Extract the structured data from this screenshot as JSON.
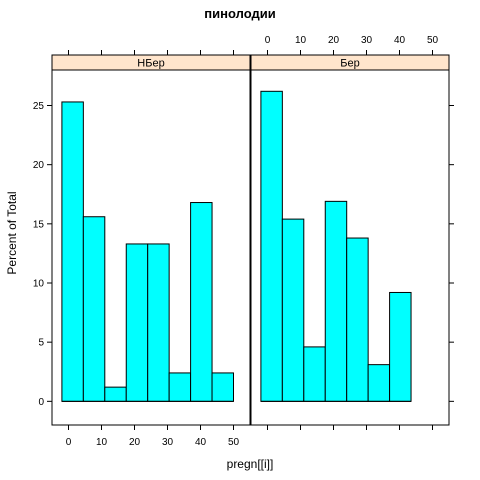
{
  "chart_data": {
    "type": "bar",
    "title": "пинолодии",
    "xlabel": "pregn[[i]]",
    "ylabel": "Percent of Total",
    "xlim": [
      -5,
      55
    ],
    "ylim": [
      -2,
      28
    ],
    "xticks": [
      0,
      10,
      20,
      30,
      40,
      50
    ],
    "yticks": [
      0,
      5,
      10,
      15,
      20,
      25
    ],
    "grid": false,
    "bar_color": "#00ffff",
    "strip_color": "#ffe5cc",
    "panels": [
      {
        "name": "НБер",
        "bins": [
          {
            "x0": -2,
            "x1": 4.5,
            "value": 25.3
          },
          {
            "x0": 4.5,
            "x1": 11,
            "value": 15.6
          },
          {
            "x0": 11,
            "x1": 17.5,
            "value": 1.2
          },
          {
            "x0": 17.5,
            "x1": 24,
            "value": 13.3
          },
          {
            "x0": 24,
            "x1": 30.5,
            "value": 13.3
          },
          {
            "x0": 30.5,
            "x1": 37,
            "value": 2.4
          },
          {
            "x0": 37,
            "x1": 43.5,
            "value": 16.8
          },
          {
            "x0": 43.5,
            "x1": 50,
            "value": 2.4
          }
        ]
      },
      {
        "name": "Бер",
        "bins": [
          {
            "x0": -2,
            "x1": 4.5,
            "value": 26.2
          },
          {
            "x0": 4.5,
            "x1": 11,
            "value": 15.4
          },
          {
            "x0": 11,
            "x1": 17.5,
            "value": 4.6
          },
          {
            "x0": 17.5,
            "x1": 24,
            "value": 16.9
          },
          {
            "x0": 24,
            "x1": 30.5,
            "value": 13.8
          },
          {
            "x0": 30.5,
            "x1": 37,
            "value": 3.1
          },
          {
            "x0": 37,
            "x1": 43.5,
            "value": 9.2
          }
        ]
      }
    ]
  }
}
